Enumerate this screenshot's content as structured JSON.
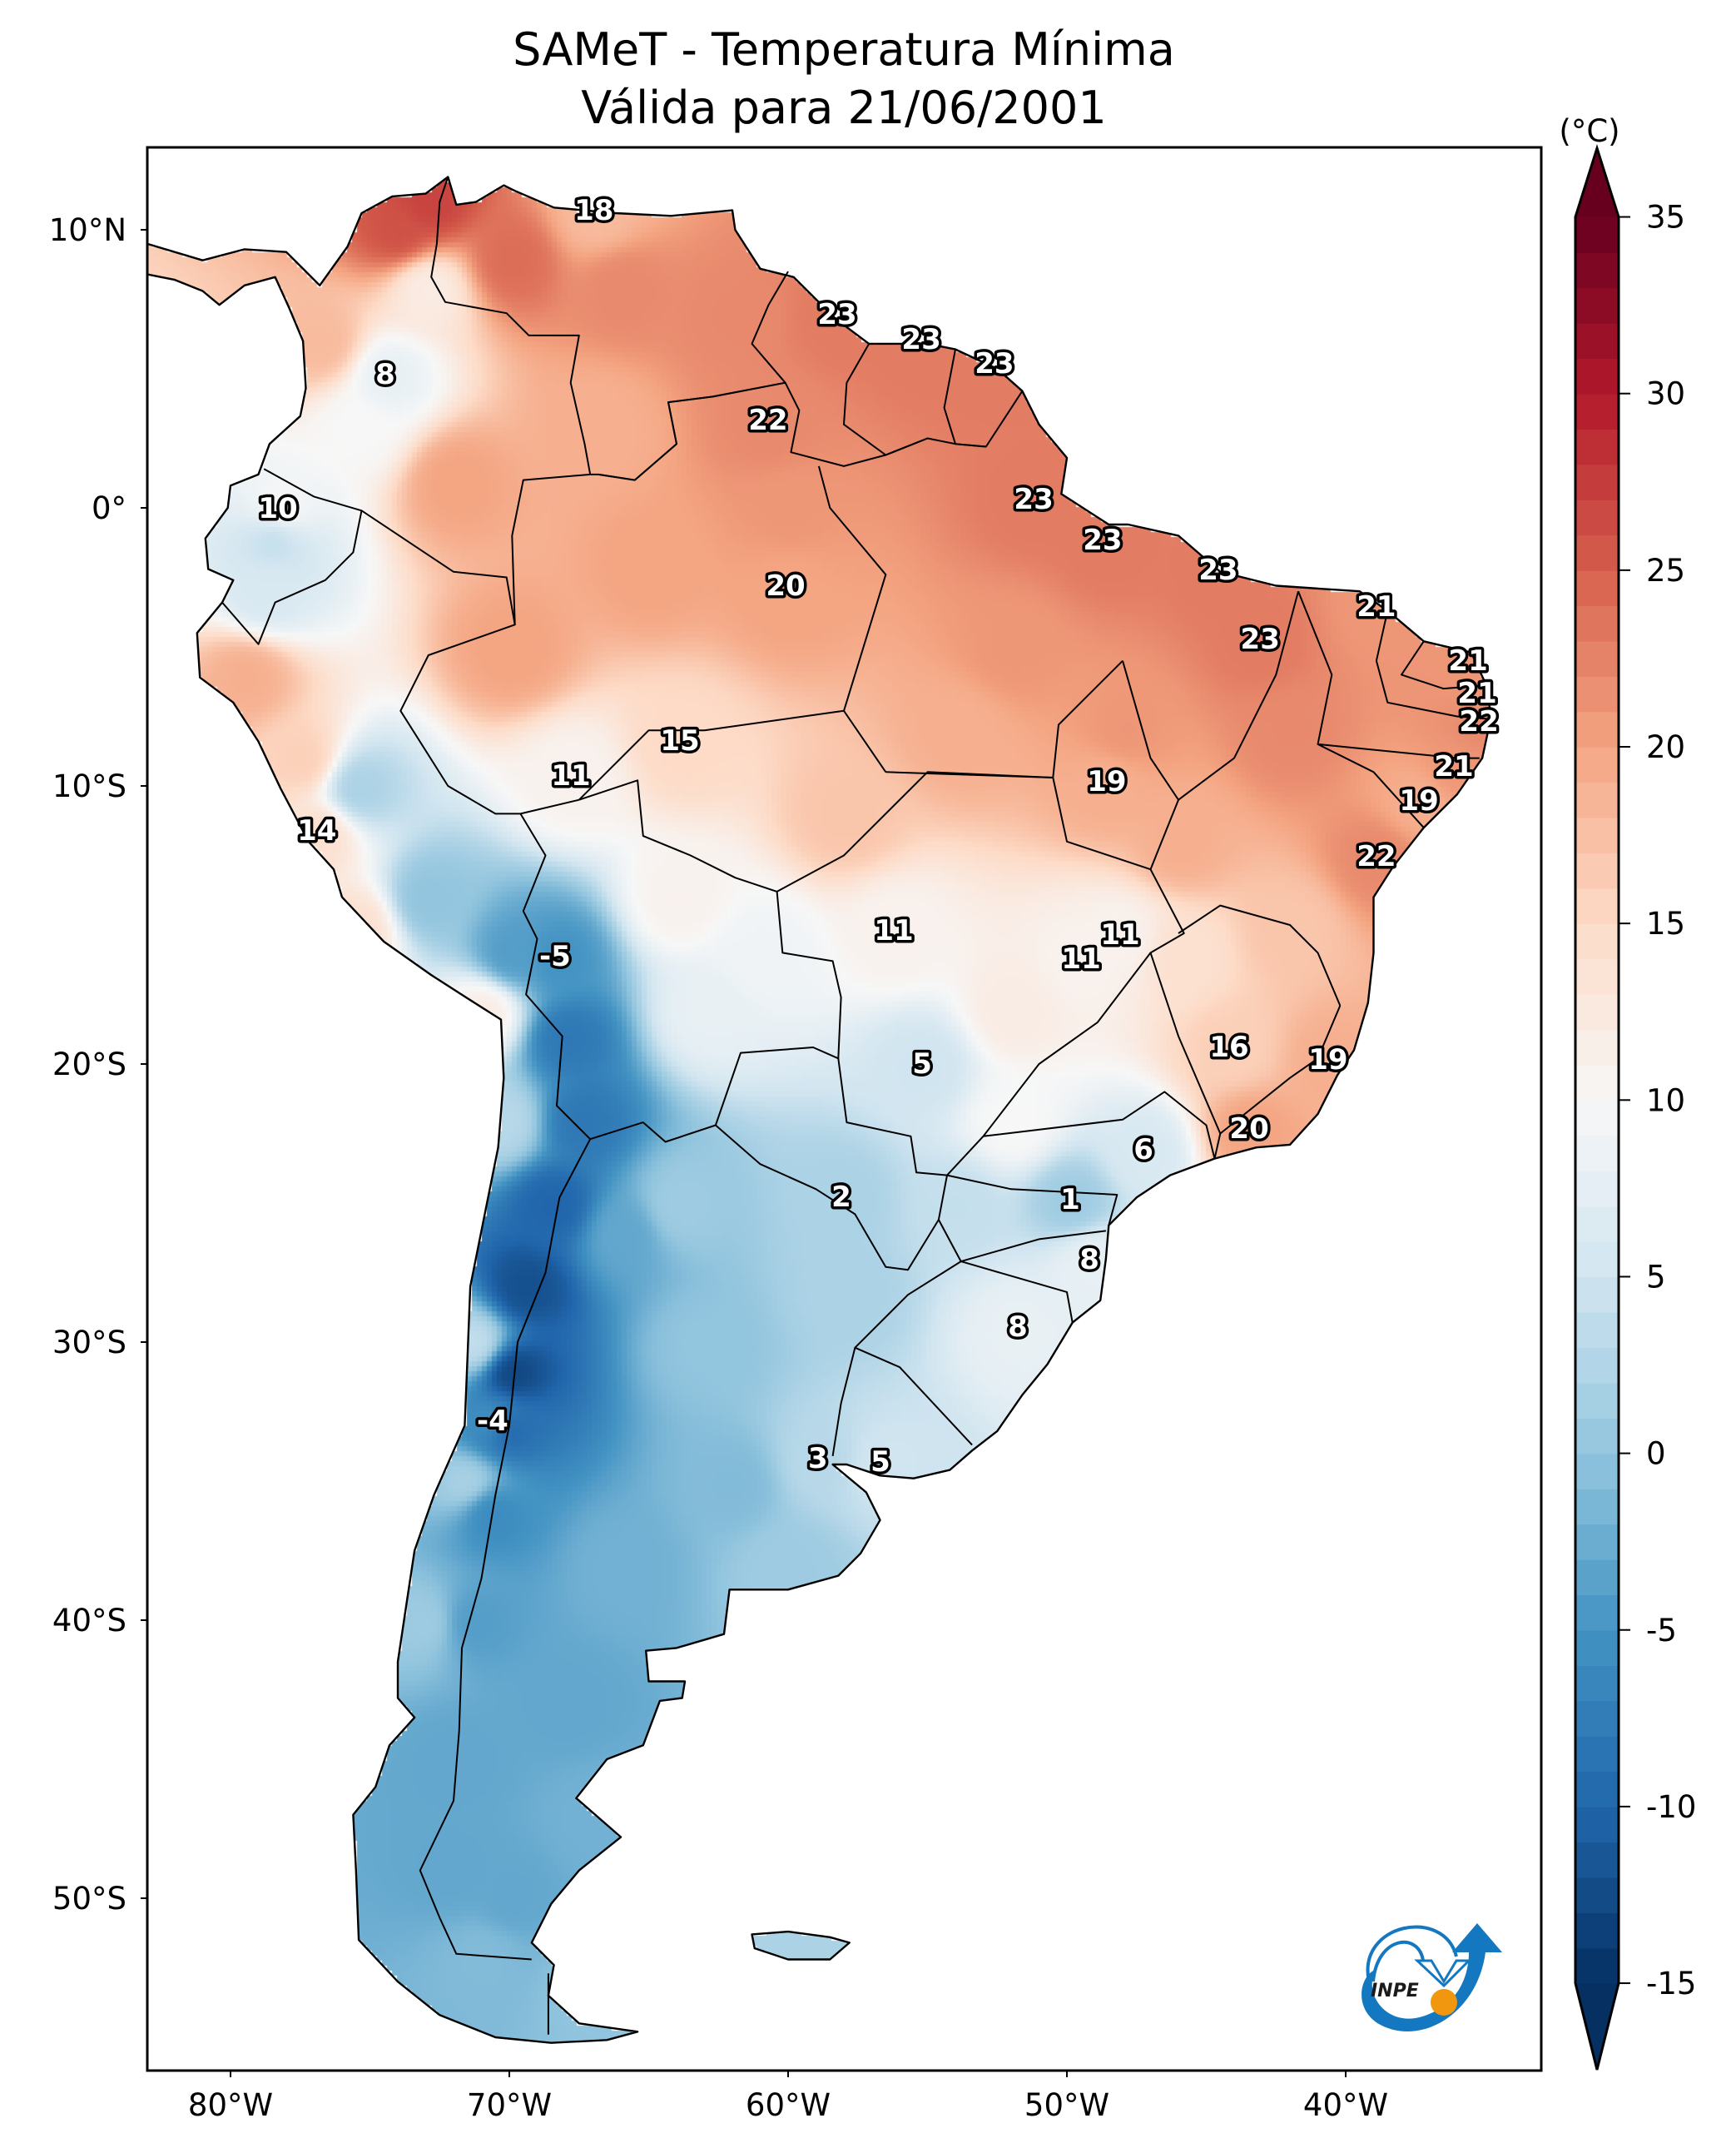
{
  "chart_data": {
    "type": "heatmap",
    "title": "SAMeT - Temperatura Mínima",
    "subtitle": "Válida para 21/06/2001",
    "variable": "Temperatura Mínima",
    "valid_date": "21/06/2001",
    "units_label": "(°C)",
    "colormap": "RdBu_r",
    "color_range": [
      -15,
      35
    ],
    "colorbar_extend": "both",
    "colorbar_ticks": [
      35,
      30,
      25,
      20,
      15,
      10,
      5,
      0,
      -5,
      -10,
      -15
    ],
    "colorbar_tick_labels": [
      "35",
      "30",
      "25",
      "20",
      "15",
      "10",
      "5",
      "0",
      "-5",
      "-10",
      "-15"
    ],
    "colormap_stops": [
      "#053061",
      "#2166ac",
      "#4393c3",
      "#92c5de",
      "#d1e5f0",
      "#f7f7f7",
      "#fddbc7",
      "#f4a582",
      "#d6604d",
      "#b2182b",
      "#67001f"
    ],
    "xlim": [
      -83,
      -33
    ],
    "ylim": [
      -56.2,
      13
    ],
    "x_ticks": [
      -80,
      -70,
      -60,
      -50,
      -40
    ],
    "x_tick_labels": [
      "80°W",
      "70°W",
      "60°W",
      "50°W",
      "40°W"
    ],
    "y_ticks": [
      10,
      0,
      -10,
      -20,
      -30,
      -40,
      -50
    ],
    "y_tick_labels": [
      "10°N",
      "0°",
      "10°S",
      "20°S",
      "30°S",
      "40°S",
      "50°S"
    ],
    "grid": false,
    "legend": "colorbar-right",
    "labels": [
      {
        "lon": -66.96,
        "lat": 10.69,
        "value": "18"
      },
      {
        "lon": -58.24,
        "lat": 6.95,
        "value": "23"
      },
      {
        "lon": -55.22,
        "lat": 6.05,
        "value": "23"
      },
      {
        "lon": -52.6,
        "lat": 5.18,
        "value": "23"
      },
      {
        "lon": -74.45,
        "lat": 4.79,
        "value": "8"
      },
      {
        "lon": -60.72,
        "lat": 3.14,
        "value": "22"
      },
      {
        "lon": -51.19,
        "lat": 0.3,
        "value": "23"
      },
      {
        "lon": -78.3,
        "lat": -0.03,
        "value": "10"
      },
      {
        "lon": -48.72,
        "lat": -1.17,
        "value": "23"
      },
      {
        "lon": -44.57,
        "lat": -2.25,
        "value": "23"
      },
      {
        "lon": -60.09,
        "lat": -2.81,
        "value": "20"
      },
      {
        "lon": -38.9,
        "lat": -3.56,
        "value": "21"
      },
      {
        "lon": -43.07,
        "lat": -4.73,
        "value": "23"
      },
      {
        "lon": -35.61,
        "lat": -5.51,
        "value": "21"
      },
      {
        "lon": -35.28,
        "lat": -6.68,
        "value": "21"
      },
      {
        "lon": -35.22,
        "lat": -7.69,
        "value": "22"
      },
      {
        "lon": -63.88,
        "lat": -8.38,
        "value": "15"
      },
      {
        "lon": -36.12,
        "lat": -9.31,
        "value": "21"
      },
      {
        "lon": -67.79,
        "lat": -9.64,
        "value": "11"
      },
      {
        "lon": -48.57,
        "lat": -9.85,
        "value": "19"
      },
      {
        "lon": -37.37,
        "lat": -10.54,
        "value": "19"
      },
      {
        "lon": -76.9,
        "lat": -11.62,
        "value": "14"
      },
      {
        "lon": -38.9,
        "lat": -12.54,
        "value": "22"
      },
      {
        "lon": -56.21,
        "lat": -15.21,
        "value": "11"
      },
      {
        "lon": -48.09,
        "lat": -15.36,
        "value": "11"
      },
      {
        "lon": -49.49,
        "lat": -16.23,
        "value": "11"
      },
      {
        "lon": -68.36,
        "lat": -16.14,
        "value": "-5"
      },
      {
        "lon": -44.18,
        "lat": -19.4,
        "value": "16"
      },
      {
        "lon": -40.63,
        "lat": -19.85,
        "value": "19"
      },
      {
        "lon": -55.19,
        "lat": -20.0,
        "value": "5"
      },
      {
        "lon": -43.46,
        "lat": -22.34,
        "value": "20"
      },
      {
        "lon": -47.25,
        "lat": -23.08,
        "value": "6"
      },
      {
        "lon": -58.09,
        "lat": -24.79,
        "value": "2"
      },
      {
        "lon": -49.88,
        "lat": -24.88,
        "value": "1"
      },
      {
        "lon": -49.19,
        "lat": -27.04,
        "value": "8"
      },
      {
        "lon": -51.76,
        "lat": -29.46,
        "value": "8"
      },
      {
        "lon": -70.6,
        "lat": -32.84,
        "value": "-4"
      },
      {
        "lon": -58.93,
        "lat": -34.19,
        "value": "3"
      },
      {
        "lon": -56.69,
        "lat": -34.31,
        "value": "5"
      }
    ],
    "field_samples": [
      [
        -73,
        11,
        27
      ],
      [
        -74,
        10,
        26
      ],
      [
        -70,
        9,
        24
      ],
      [
        -66,
        8,
        22
      ],
      [
        -62,
        7,
        22
      ],
      [
        -73,
        8,
        12
      ],
      [
        -75.5,
        3,
        10
      ],
      [
        -76.8,
        6,
        18
      ],
      [
        -72,
        1,
        20
      ],
      [
        -67,
        3,
        19
      ],
      [
        -60,
        0,
        21
      ],
      [
        -65,
        -2,
        20
      ],
      [
        -70,
        -5,
        20
      ],
      [
        -54,
        -8,
        19
      ],
      [
        -52,
        -5,
        21
      ],
      [
        -58,
        -11,
        17
      ],
      [
        -48,
        -8,
        21
      ],
      [
        -42,
        -8,
        22
      ],
      [
        -46,
        -12,
        19
      ],
      [
        -78.5,
        -1,
        4
      ],
      [
        -78.8,
        -3,
        6
      ],
      [
        -79.5,
        -6,
        19
      ],
      [
        -77.5,
        -9,
        16
      ],
      [
        -75.5,
        -10,
        2
      ],
      [
        -73,
        -14,
        0
      ],
      [
        -75.5,
        -15,
        14
      ],
      [
        -71,
        -18,
        12
      ],
      [
        -70,
        -16,
        -4
      ],
      [
        -68,
        -19,
        -8
      ],
      [
        -67.5,
        -22,
        -8
      ],
      [
        -68.5,
        -25,
        -10
      ],
      [
        -69.5,
        -28,
        -12
      ],
      [
        -70,
        -31,
        -13
      ],
      [
        -70.3,
        -33,
        -11
      ],
      [
        -70.8,
        -36,
        -6
      ],
      [
        -71.5,
        -40,
        -4
      ],
      [
        -72,
        -45,
        -3
      ],
      [
        -72,
        -49,
        -3
      ],
      [
        -71,
        -52,
        -1
      ],
      [
        -71.3,
        -30,
        4
      ],
      [
        -71.6,
        -35,
        2
      ],
      [
        -73,
        -40,
        1
      ],
      [
        -70.3,
        -22,
        3
      ],
      [
        -63,
        -30,
        0
      ],
      [
        -62,
        -35,
        -1
      ],
      [
        -66,
        -38,
        -2
      ],
      [
        -68,
        -43,
        -3
      ],
      [
        -67,
        -47,
        -2
      ],
      [
        -70,
        -50,
        -3
      ],
      [
        -67,
        -53,
        0
      ],
      [
        -60,
        -38,
        1
      ],
      [
        -58,
        -28,
        2
      ],
      [
        -64,
        -25,
        1
      ],
      [
        -66,
        -26,
        -3
      ],
      [
        -63,
        -18,
        8
      ],
      [
        -61,
        -16,
        9
      ],
      [
        -64,
        -14,
        11
      ],
      [
        -52,
        -22,
        10
      ],
      [
        -54,
        -25,
        4
      ],
      [
        -46,
        -16,
        14
      ],
      [
        -42,
        -15,
        17
      ],
      [
        -52,
        -18,
        12
      ],
      [
        -59.5,
        -51.7,
        2
      ]
    ]
  },
  "logo": {
    "text": "INPE"
  }
}
